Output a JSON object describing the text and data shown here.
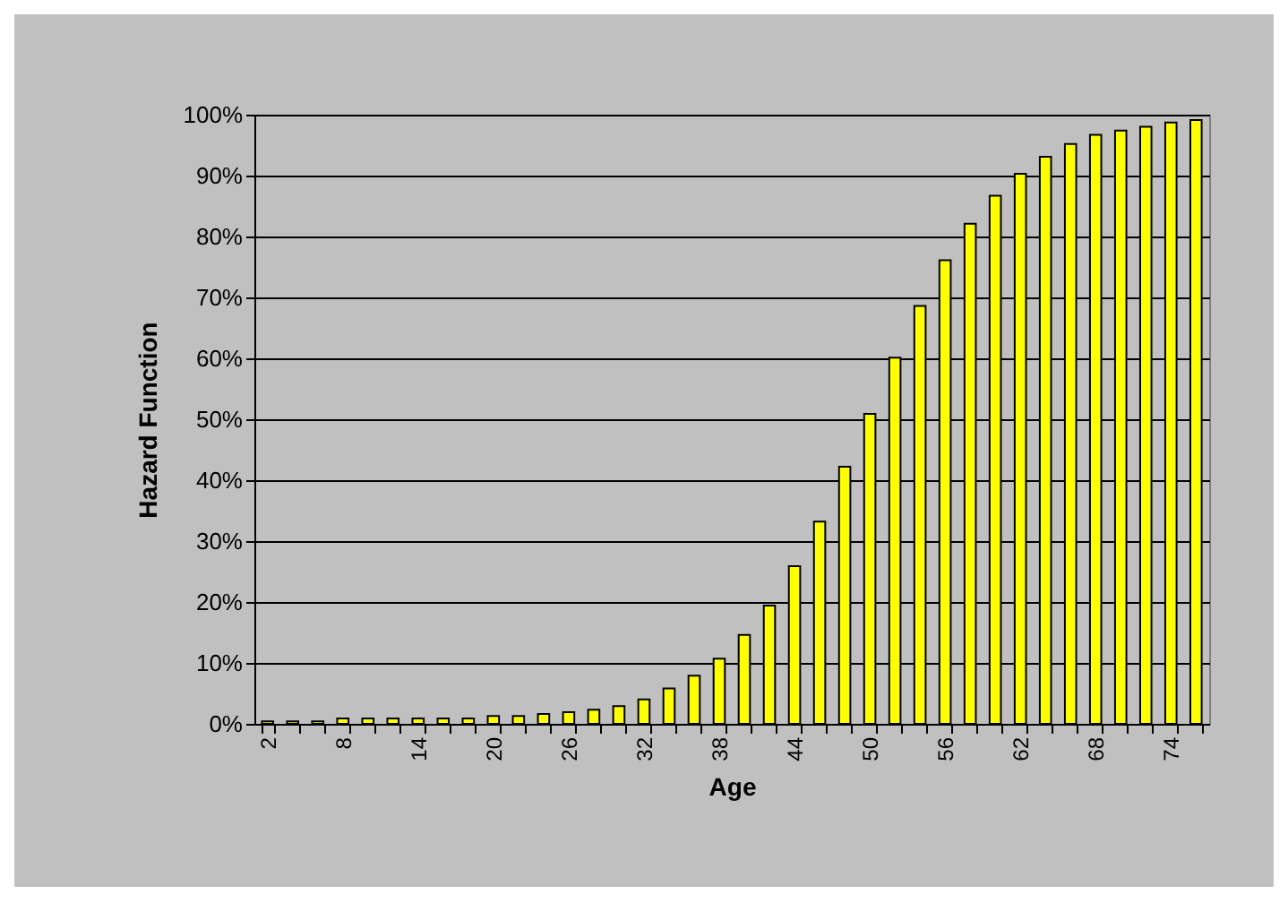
{
  "chart_data": {
    "type": "bar",
    "xlabel": "Age",
    "ylabel": "Hazard Function",
    "categories": [
      "2",
      null,
      null,
      "8",
      null,
      null,
      "14",
      null,
      null,
      "20",
      null,
      null,
      "26",
      null,
      null,
      "32",
      null,
      null,
      "38",
      null,
      null,
      "44",
      null,
      null,
      "50",
      null,
      null,
      "56",
      null,
      null,
      "62",
      null,
      null,
      "68",
      null,
      null,
      "74",
      null
    ],
    "values": [
      0.4,
      0.4,
      0.4,
      0.9,
      0.9,
      0.9,
      0.9,
      0.9,
      0.9,
      1.3,
      1.3,
      1.6,
      1.9,
      2.3,
      2.9,
      4.0,
      5.8,
      7.9,
      10.7,
      14.6,
      19.4,
      25.9,
      33.2,
      42.2,
      50.9,
      60.1,
      68.6,
      76.1,
      82.1,
      86.7,
      90.3,
      93.1,
      95.2,
      96.7,
      97.4,
      98.0,
      98.7,
      99.1
    ],
    "color": "#ffff00",
    "ylim": [
      0,
      100
    ],
    "yticks": [
      {
        "value": 0,
        "label": "0%"
      },
      {
        "value": 10,
        "label": "10%"
      },
      {
        "value": 20,
        "label": "20%"
      },
      {
        "value": 30,
        "label": "30%"
      },
      {
        "value": 40,
        "label": "40%"
      },
      {
        "value": 50,
        "label": "50%"
      },
      {
        "value": 60,
        "label": "60%"
      },
      {
        "value": 70,
        "label": "70%"
      },
      {
        "value": 80,
        "label": "80%"
      },
      {
        "value": 90,
        "label": "90%"
      },
      {
        "value": 100,
        "label": "100%"
      }
    ],
    "grid": "y"
  }
}
